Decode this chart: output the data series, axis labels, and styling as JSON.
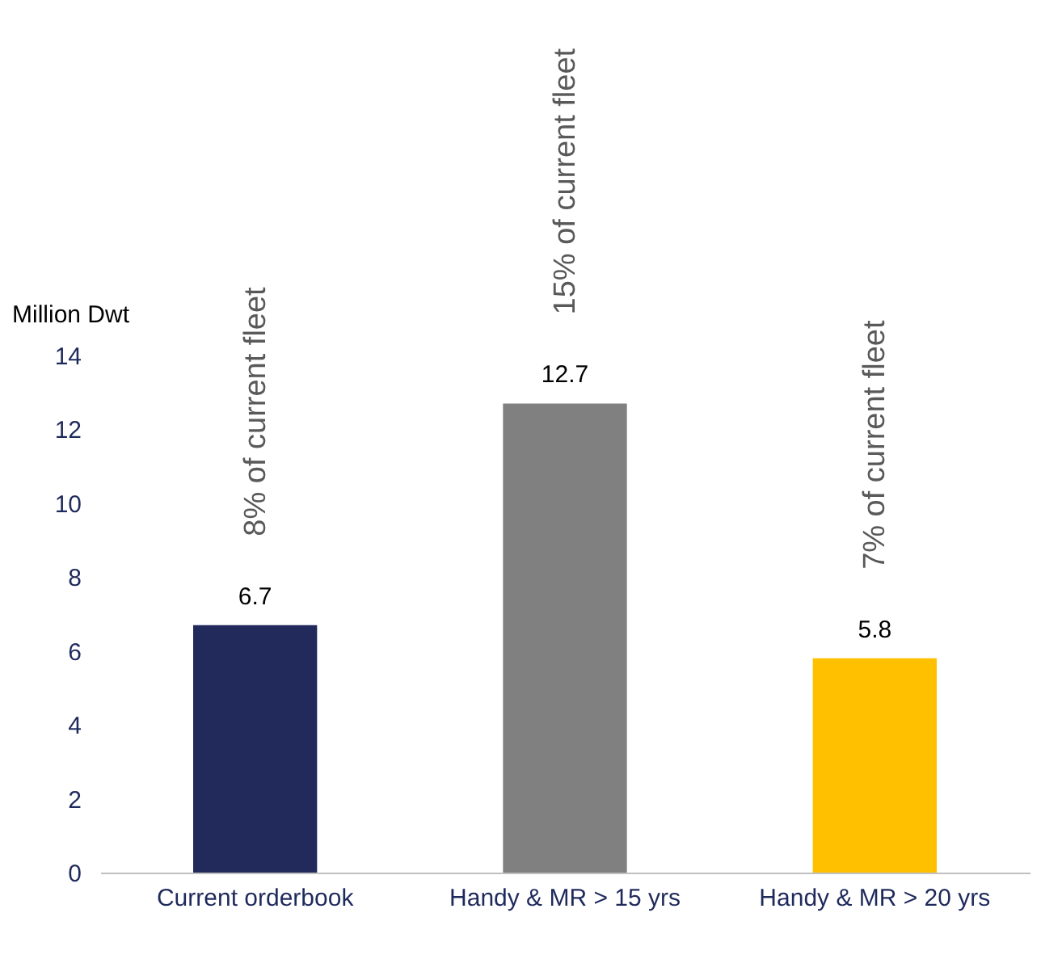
{
  "chart_data": {
    "type": "bar",
    "categories": [
      "Current orderbook",
      "Handy & MR > 15 yrs",
      "Handy & MR > 20 yrs"
    ],
    "values": [
      6.7,
      12.7,
      5.8
    ],
    "colors": [
      "#222a5c",
      "#808080",
      "#ffc000"
    ],
    "ylabel": "Million Dwt",
    "ylim": [
      0,
      14
    ],
    "yticks": [
      0,
      2,
      4,
      6,
      8,
      10,
      12,
      14
    ],
    "data_labels": true,
    "grid": false,
    "annotations": [
      {
        "text": "8% of current fleet",
        "x": "Current orderbook",
        "y": 6.7
      },
      {
        "text": "15% of current fleet",
        "x": "Handy & MR > 15 yrs",
        "y": 12.7
      },
      {
        "text": "7% of current fleet",
        "x": "Handy & MR > 20 yrs",
        "y": 5.8
      }
    ]
  }
}
